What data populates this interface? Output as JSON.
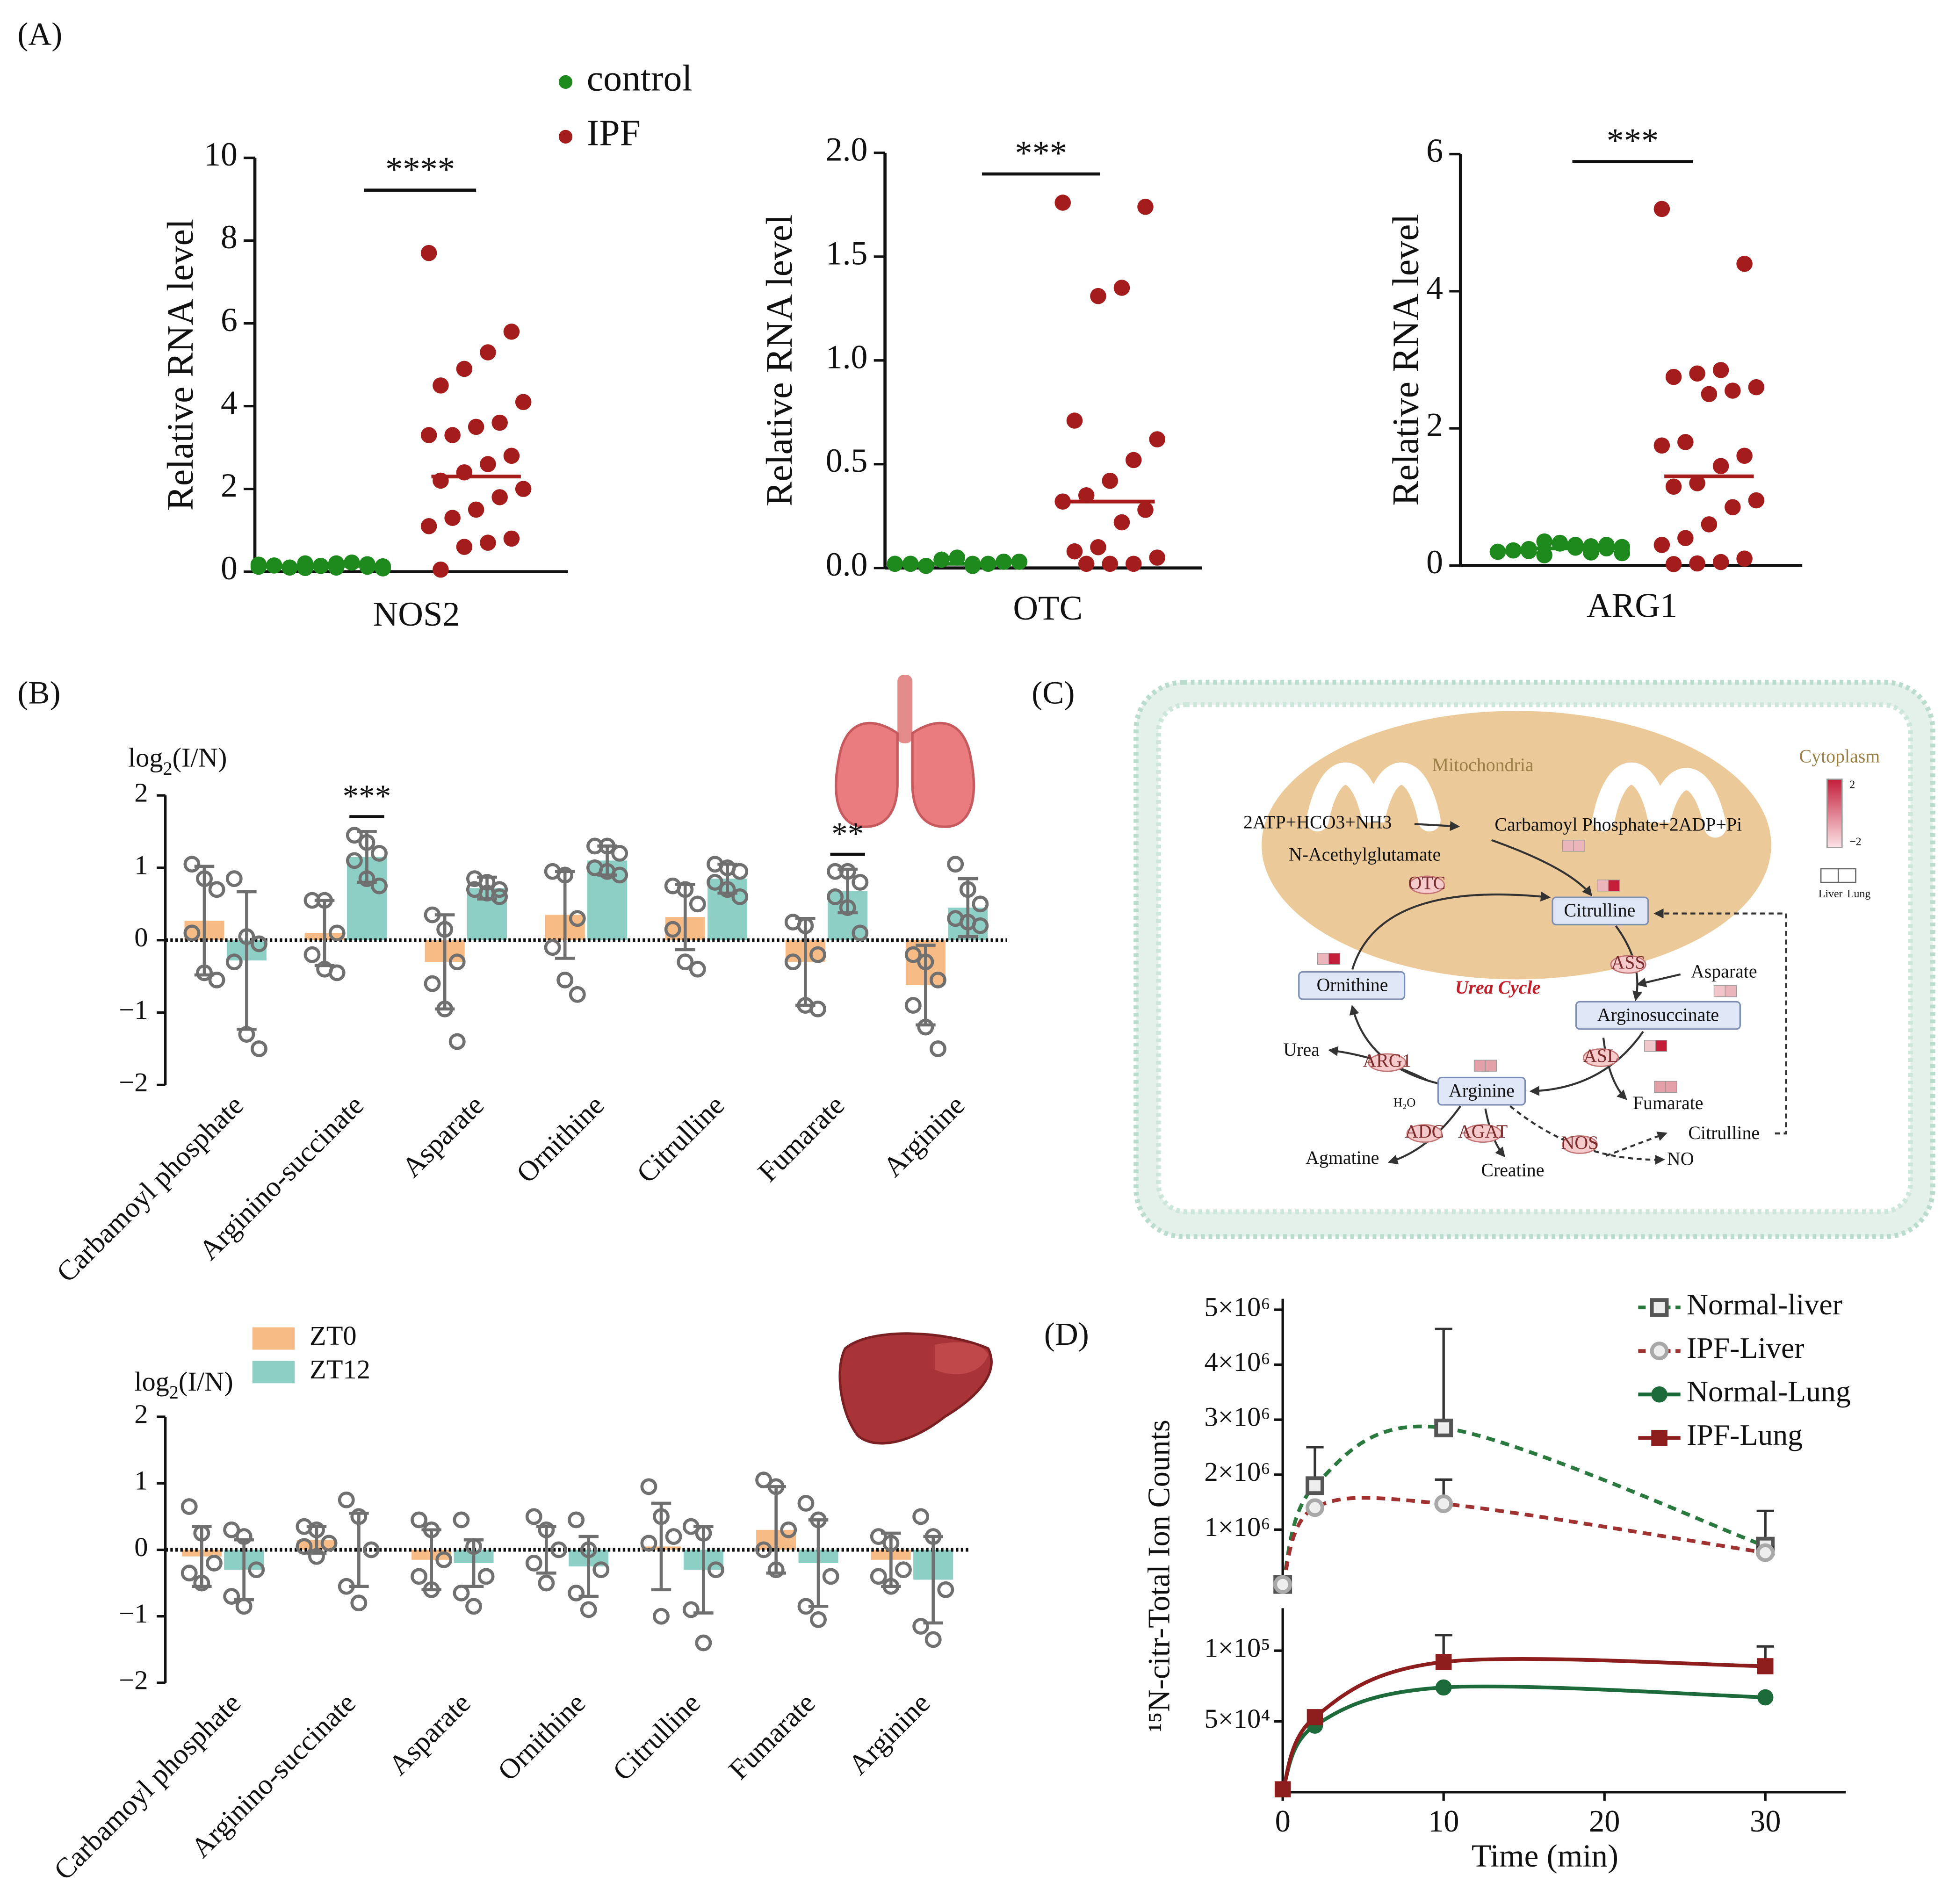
{
  "panel_labels": [
    "(A)",
    "(B)",
    "(C)",
    "(D)"
  ],
  "chart_data": [
    {
      "type": "strip",
      "ylabel": "Relative RNA level",
      "xlabel": "NOS2",
      "ylim": [
        0,
        10
      ],
      "yticks": [
        0,
        2,
        4,
        6,
        8,
        10
      ],
      "significance": "****",
      "legend": true,
      "series": [
        {
          "name": "control",
          "color": "#1e8a1e",
          "mean": 0.14,
          "values": [
            0.12,
            0.18,
            0.1,
            0.2,
            0.15,
            0.08,
            0.22,
            0.14,
            0.1,
            0.17,
            0.12,
            0.2,
            0.09,
            0.15,
            0.13
          ]
        },
        {
          "name": "IPF",
          "color": "#a51c1c",
          "mean": 2.3,
          "values": [
            7.7,
            5.8,
            5.3,
            4.9,
            4.5,
            4.1,
            3.6,
            3.5,
            3.3,
            3.3,
            2.8,
            2.6,
            2.4,
            2.2,
            2.0,
            1.8,
            1.5,
            1.3,
            1.1,
            0.8,
            0.7,
            0.6,
            0.05
          ]
        }
      ]
    },
    {
      "type": "strip",
      "ylabel": "Relative RNA level",
      "xlabel": "OTC",
      "ylim": [
        0,
        2
      ],
      "yticks": [
        {
          "value": 0,
          "label": "0.0"
        },
        0.5,
        {
          "value": 1,
          "label": "1.0"
        },
        1.5,
        {
          "value": 2,
          "label": "2.0"
        }
      ],
      "significance": "***",
      "series": [
        {
          "color": "#1e8a1e",
          "mean": 0.02,
          "values": [
            0.02,
            0.03,
            0.01,
            0.04,
            0.02,
            0.03,
            0.02,
            0.05,
            0.01,
            0.02,
            0.03,
            0.02,
            0.04,
            0.02,
            0.03
          ]
        },
        {
          "color": "#a51c1c",
          "mean": 0.32,
          "values": [
            1.76,
            1.74,
            1.35,
            1.31,
            0.71,
            0.62,
            0.52,
            0.42,
            0.35,
            0.32,
            0.28,
            0.22,
            0.1,
            0.08,
            0.05,
            0.02,
            0.02,
            0.02
          ]
        }
      ]
    },
    {
      "type": "strip",
      "ylabel": "Relative RNA level",
      "xlabel": "ARG1",
      "ylim": [
        0,
        6
      ],
      "yticks": [
        0,
        2,
        4,
        6
      ],
      "significance": "***",
      "series": [
        {
          "color": "#1e8a1e",
          "mean": 0.25,
          "values": [
            0.2,
            0.25,
            0.3,
            0.35,
            0.22,
            0.18,
            0.28,
            0.32,
            0.24,
            0.2,
            0.3,
            0.26,
            0.15,
            0.22,
            0.27,
            0.19,
            0.33,
            0.21
          ]
        },
        {
          "color": "#a51c1c",
          "mean": 1.3,
          "values": [
            5.2,
            4.4,
            2.85,
            2.8,
            2.75,
            2.6,
            2.55,
            2.5,
            1.8,
            1.75,
            1.6,
            1.45,
            1.2,
            1.15,
            0.95,
            0.85,
            0.6,
            0.4,
            0.3,
            0.1,
            0.05,
            0.03,
            0.02
          ]
        }
      ]
    },
    {
      "type": "bar",
      "ylabel": [
        "log",
        "2",
        "(I/N)"
      ],
      "ylim": [
        -2,
        2
      ],
      "yticks": [
        {
          "value": -2,
          "label": "−2"
        },
        {
          "value": -1,
          "label": "−1"
        },
        0,
        1,
        2
      ],
      "categories": [
        "Carbamoyl phosphate",
        "Arginino-succinate",
        "Asparate",
        "Ornithine",
        "Citrulline",
        "Fumarate",
        "Arginine"
      ],
      "annotations": [
        {
          "label": "***",
          "category": "Arginino-succinate"
        },
        {
          "label": "**",
          "category": "Fumarate"
        }
      ],
      "series": [
        {
          "color": "#f7bc86",
          "values": [
            0.27,
            0.1,
            -0.3,
            0.35,
            0.32,
            -0.3,
            -0.62
          ],
          "errors": [
            0.75,
            0.45,
            0.65,
            0.6,
            0.45,
            0.6,
            0.55
          ],
          "points": [
            [
              1.05,
              0.85,
              0.7,
              0.1,
              -0.45,
              -0.55
            ],
            [
              0.55,
              0.55,
              0.1,
              -0.2,
              -0.4,
              -0.45
            ],
            [
              0.35,
              0.15,
              -0.3,
              -0.6,
              -0.95,
              -1.4
            ],
            [
              0.95,
              0.9,
              0.3,
              -0.1,
              -0.55,
              -0.75
            ],
            [
              0.75,
              0.7,
              0.5,
              0.15,
              -0.3,
              -0.4
            ],
            [
              0.25,
              0.2,
              -0.2,
              -0.3,
              -0.9,
              -0.95
            ],
            [
              -0.2,
              -0.3,
              -0.55,
              -0.9,
              -1.2,
              -1.5
            ]
          ]
        },
        {
          "color": "#8ecfc5",
          "values": [
            -0.28,
            1.15,
            0.72,
            1.1,
            0.85,
            0.68,
            0.45
          ],
          "errors": [
            0.95,
            0.35,
            0.15,
            0.2,
            0.2,
            0.3,
            0.4
          ],
          "points": [
            [
              0.85,
              0.05,
              -0.05,
              -0.3,
              -1.3,
              -1.5
            ],
            [
              1.45,
              1.35,
              1.2,
              1.1,
              0.85,
              0.75
            ],
            [
              0.85,
              0.8,
              0.7,
              0.7,
              0.65,
              0.6
            ],
            [
              1.3,
              1.3,
              1.2,
              1.0,
              0.95,
              0.9
            ],
            [
              1.05,
              1.0,
              0.95,
              0.8,
              0.7,
              0.6
            ],
            [
              0.95,
              0.95,
              0.8,
              0.6,
              0.45,
              0.1
            ],
            [
              1.05,
              0.7,
              0.5,
              0.3,
              0.25,
              0.2
            ]
          ]
        }
      ]
    },
    {
      "type": "bar",
      "ylabel": [
        "log",
        "2",
        "(I/N)"
      ],
      "ylim": [
        -2,
        2
      ],
      "yticks": [
        {
          "value": -2,
          "label": "−2"
        },
        {
          "value": -1,
          "label": "−1"
        },
        0,
        1,
        2
      ],
      "legend": true,
      "categories": [
        "Carbamoyl phosphate",
        "Arginino-succinate",
        "Asparate",
        "Ornithine",
        "Citrulline",
        "Fumarate",
        "Arginine"
      ],
      "series": [
        {
          "name": "ZT0",
          "color": "#f7bc86",
          "values": [
            -0.1,
            0.15,
            -0.15,
            0.0,
            0.05,
            0.3,
            -0.15
          ],
          "errors": [
            0.45,
            0.2,
            0.45,
            0.35,
            0.65,
            0.65,
            0.4
          ],
          "points": [
            [
              0.65,
              0.25,
              -0.2,
              -0.35,
              -0.5
            ],
            [
              0.35,
              0.3,
              0.1,
              0.05,
              -0.1
            ],
            [
              0.45,
              0.3,
              -0.15,
              -0.4,
              -0.6
            ],
            [
              0.5,
              0.3,
              0.0,
              -0.2,
              -0.5
            ],
            [
              0.95,
              0.5,
              0.2,
              0.1,
              -1.0
            ],
            [
              1.05,
              0.95,
              0.3,
              0.0,
              -0.3
            ],
            [
              0.2,
              0.1,
              -0.3,
              -0.4,
              -0.55
            ]
          ]
        },
        {
          "name": "ZT12",
          "color": "#8ecfc5",
          "values": [
            -0.3,
            0.0,
            -0.2,
            -0.25,
            -0.3,
            -0.2,
            -0.45
          ],
          "errors": [
            0.45,
            0.55,
            0.35,
            0.45,
            0.65,
            0.65,
            0.65
          ],
          "points": [
            [
              0.3,
              0.2,
              -0.3,
              -0.7,
              -0.85
            ],
            [
              0.75,
              0.5,
              0.0,
              -0.55,
              -0.8
            ],
            [
              0.45,
              0.05,
              -0.4,
              -0.65,
              -0.85
            ],
            [
              0.45,
              0.0,
              -0.3,
              -0.65,
              -0.9
            ],
            [
              0.35,
              0.25,
              -0.3,
              -0.9,
              -1.4
            ],
            [
              0.7,
              0.45,
              -0.4,
              -0.85,
              -1.05
            ],
            [
              0.5,
              0.2,
              -0.6,
              -1.15,
              -1.35
            ]
          ]
        }
      ]
    },
    {
      "type": "line",
      "xlabel": "Time (min)",
      "ylabel": "¹⁵N-citr-Total Ion Counts",
      "x": [
        0,
        2,
        10,
        30
      ],
      "xlim": [
        0,
        35
      ],
      "xticks": [
        0,
        10,
        20,
        30
      ],
      "panels": [
        {
          "ylim": [
            0,
            5200000
          ],
          "yticks": [
            {
              "value": 1000000,
              "label": "1×10⁶"
            },
            {
              "value": 2000000,
              "label": "2×10⁶"
            },
            {
              "value": 3000000,
              "label": "3×10⁶"
            },
            {
              "value": 4000000,
              "label": "4×10⁶"
            },
            {
              "value": 5000000,
              "label": "5×10⁶"
            }
          ]
        },
        {
          "ylim": [
            0,
            130000
          ],
          "yticks": [
            {
              "value": 50000,
              "label": "5×10⁴"
            },
            {
              "value": 100000,
              "label": "1×10⁵"
            }
          ]
        }
      ],
      "series": [
        {
          "name": "Normal-liver",
          "panel": 0,
          "marker": "square",
          "hollow": true,
          "color": "#555555",
          "line_color": "#2a7a3f",
          "dashed": true,
          "values": [
            2000,
            1800000,
            2850000,
            700000
          ],
          "errors": [
            null,
            700000,
            1800000,
            640000
          ]
        },
        {
          "name": "IPF-Liver",
          "panel": 0,
          "marker": "circle",
          "hollow": true,
          "color": "#a8a8a8",
          "line_color": "#a03232",
          "dashed": true,
          "values": [
            2000,
            1400000,
            1470000,
            580000
          ],
          "errors": [
            null,
            null,
            440000,
            100000
          ]
        },
        {
          "name": "Normal-Lung",
          "panel": 1,
          "marker": "circle",
          "color": "#1d6b3a",
          "line_color": "#1d6b3a",
          "values": [
            2000,
            47000,
            74000,
            67000
          ]
        },
        {
          "name": "IPF-Lung",
          "panel": 1,
          "marker": "square",
          "color": "#8e1d1d",
          "line_color": "#8e1d1d",
          "values": [
            2000,
            53000,
            92000,
            89000
          ],
          "errors": [
            null,
            null,
            19000,
            14000
          ]
        }
      ]
    }
  ],
  "pathway": {
    "compartments": [
      "Mitochondria",
      "Cytoplasm"
    ],
    "cycle": "Urea Cycle",
    "reactants": [
      "2ATP+HCO3+NH3",
      "Carbamoyl Phosphate+2ADP+Pi",
      "N-Acethylglutamate"
    ],
    "nodes": [
      "Citrulline",
      "Ornithine",
      "Arginosuccinate",
      "Arginine"
    ],
    "products": [
      "Asparate",
      "Urea",
      "Fumarate",
      "Agmatine",
      "Creatine",
      "NO",
      "Citrulline"
    ],
    "enzymes": [
      "OTC",
      "ASS",
      "ARG1",
      "ASL",
      "ADC",
      "AGAT",
      "NOS"
    ],
    "water": "H₂O",
    "scale": [
      "2",
      "−2"
    ],
    "legend": [
      "Liver",
      "Lung"
    ]
  }
}
